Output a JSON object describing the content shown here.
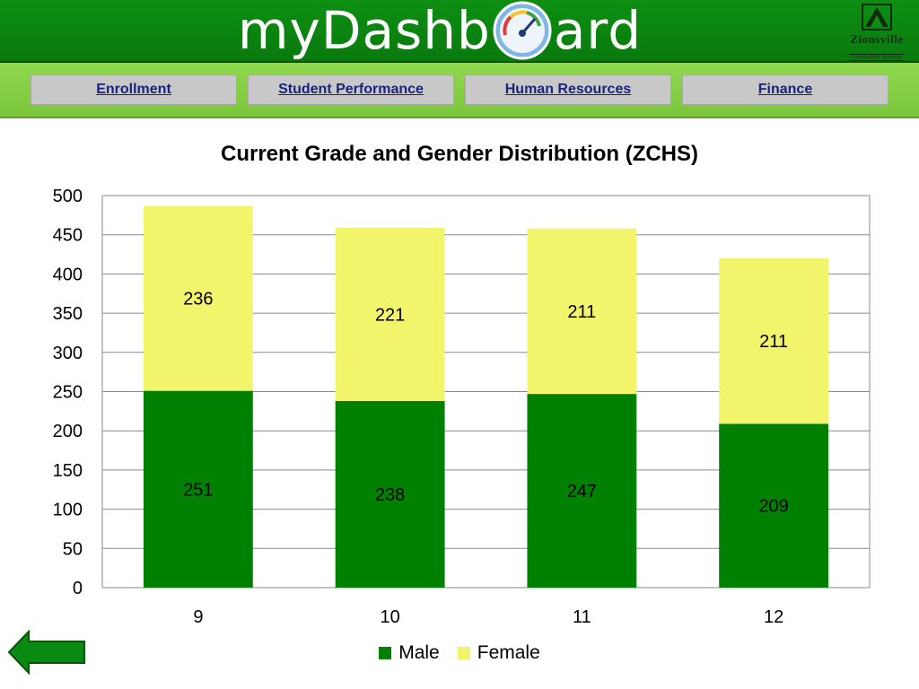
{
  "header": {
    "logo_prefix": "myDashb",
    "logo_suffix": "ard",
    "school_name": "Zionsville",
    "school_subtitle": "Community Schools"
  },
  "nav": {
    "items": [
      {
        "label": "Enrollment"
      },
      {
        "label": "Student Performance"
      },
      {
        "label": "Human Resources"
      },
      {
        "label": "Finance"
      }
    ]
  },
  "colors": {
    "header_green": "#0d8f12",
    "nav_green": "#8fd84f",
    "male": "#008000",
    "female": "#f2f56c",
    "nav_link": "#1a237e"
  },
  "chart_data": {
    "type": "bar",
    "stacked": true,
    "title": "Current Grade and Gender Distribution (ZCHS)",
    "categories": [
      "9",
      "10",
      "11",
      "12"
    ],
    "series": [
      {
        "name": "Male",
        "values": [
          251,
          238,
          247,
          209
        ]
      },
      {
        "name": "Female",
        "values": [
          236,
          221,
          211,
          211
        ]
      }
    ],
    "ylim": [
      0,
      500
    ],
    "yticks": [
      0,
      50,
      100,
      150,
      200,
      250,
      300,
      350,
      400,
      450,
      500
    ],
    "grid": true,
    "legend_position": "bottom"
  }
}
